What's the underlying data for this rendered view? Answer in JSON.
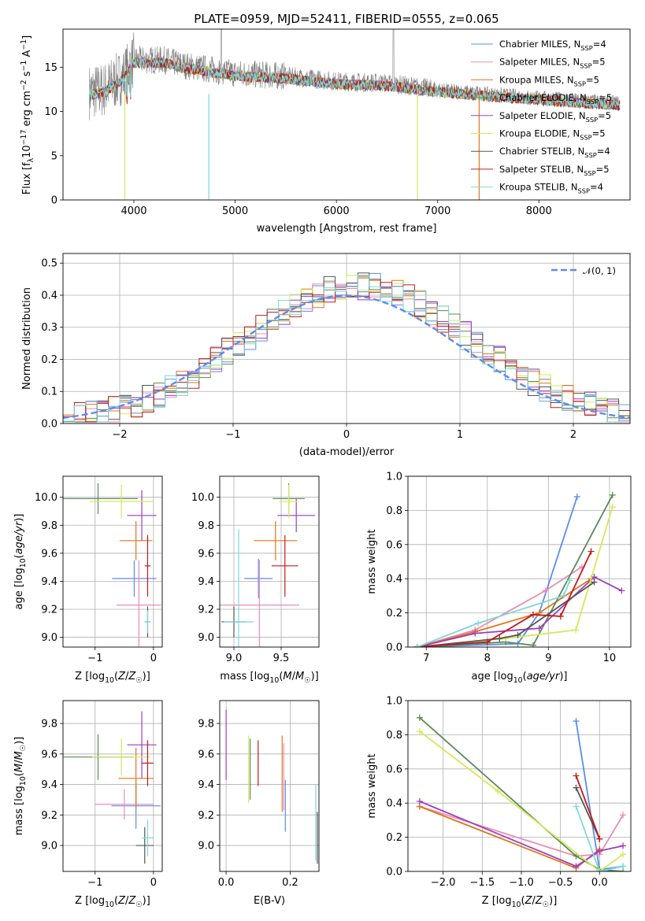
{
  "chart_data": [
    {
      "id": "spectrum",
      "type": "line",
      "title": "PLATE=0959, MJD=52411, FIBERID=0555, z=0.065",
      "xlabel": "wavelength [Angstrom, rest frame]",
      "ylabel": "Flux [f_λ 10^-17 erg cm^-2 s^-1 A^-1]",
      "xlim": [
        3300,
        8900
      ],
      "ylim": [
        0,
        19.3
      ],
      "xticks": [
        4000,
        5000,
        6000,
        7000,
        8000
      ],
      "yticks": [
        0,
        5,
        10,
        15
      ],
      "grid": false,
      "legend_position": "top-right",
      "data_color": "#808080",
      "continuum_points": [
        [
          3560,
          12.2
        ],
        [
          3700,
          12.4
        ],
        [
          3900,
          14.0
        ],
        [
          4000,
          15.8
        ],
        [
          4300,
          15.8
        ],
        [
          4500,
          15.2
        ],
        [
          5000,
          14.3
        ],
        [
          5500,
          14.0
        ],
        [
          6000,
          13.4
        ],
        [
          6500,
          13.2
        ],
        [
          7000,
          12.5
        ],
        [
          7500,
          12.0
        ],
        [
          8000,
          11.6
        ],
        [
          8500,
          11.2
        ],
        [
          8800,
          11.0
        ]
      ],
      "series": [
        {
          "name": "Chabrier MILES, N_SSP=4",
          "label_main": "Chabrier MILES, N",
          "label_sub": "SSP",
          "label_end": "=4",
          "color": "#5b8def"
        },
        {
          "name": "Salpeter MILES, N_SSP=5",
          "label_main": "Salpeter MILES, N",
          "label_sub": "SSP",
          "label_end": "=5",
          "color": "#e98cb8"
        },
        {
          "name": "Kroupa MILES, N_SSP=5",
          "label_main": "Kroupa MILES, N",
          "label_sub": "SSP",
          "label_end": "=5",
          "color": "#e0761a"
        },
        {
          "name": "Chabrier ELODIE, N_SSP=5",
          "label_main": "Chabrier ELODIE, N",
          "label_sub": "SSP",
          "label_end": "=5",
          "color": "#5a8a5a"
        },
        {
          "name": "Salpeter ELODIE, N_SSP=5",
          "label_main": "Salpeter ELODIE, N",
          "label_sub": "SSP",
          "label_end": "=5",
          "color": "#9b3fbf"
        },
        {
          "name": "Kroupa ELODIE, N_SSP=5",
          "label_main": "Kroupa ELODIE, N",
          "label_sub": "SSP",
          "label_end": "=5",
          "color": "#d6e85a"
        },
        {
          "name": "Chabrier STELIB, N_SSP=4",
          "label_main": "Chabrier STELIB, N",
          "label_sub": "SSP",
          "label_end": "=4",
          "color": "#555555"
        },
        {
          "name": "Salpeter STELIB, N_SSP=5",
          "label_main": "Salpeter STELIB, N",
          "label_sub": "SSP",
          "label_end": "=5",
          "color": "#c41a1a"
        },
        {
          "name": "Kroupa STELIB, N_SSP=4",
          "label_main": "Kroupa STELIB, N",
          "label_sub": "SSP",
          "label_end": "=4",
          "color": "#7fd8d8"
        }
      ]
    },
    {
      "id": "residuals",
      "type": "bar",
      "xlabel": "(data-model)/error",
      "ylabel": "Normed distribution",
      "xlim": [
        -2.5,
        2.5
      ],
      "ylim": [
        0,
        0.53
      ],
      "xticks": [
        -2,
        -1,
        0,
        1,
        2
      ],
      "yticks": [
        0.0,
        0.1,
        0.2,
        0.3,
        0.4,
        0.5
      ],
      "grid": true,
      "legend_position": "top-right",
      "reference_label": "𝒩(0, 1)",
      "reference_color": "#5b8def",
      "bin_width": 0.1,
      "bin_start": -2.5,
      "colors": [
        "#5b8def",
        "#e98cb8",
        "#e0761a",
        "#5a8a5a",
        "#9b3fbf",
        "#d6e85a",
        "#555555",
        "#c41a1a",
        "#7fd8d8"
      ]
    },
    {
      "id": "age_vs_Z",
      "type": "scatter",
      "xlabel": "Z [log10(Z/Z☉)]",
      "ylabel": "age  [log10(age/yr)]",
      "xlim": [
        -1.55,
        0.15
      ],
      "ylim": [
        8.93,
        10.15
      ],
      "xticks": [
        -1,
        0
      ],
      "yticks": [
        9.0,
        9.2,
        9.4,
        9.6,
        9.8,
        10.0
      ],
      "grid": true,
      "points": [
        {
          "x": -0.33,
          "y": 9.42,
          "xerr": 0.38,
          "yerr": 0.13,
          "c": 0
        },
        {
          "x": -0.25,
          "y": 9.23,
          "xerr": 0.38,
          "yerr": 0.32,
          "c": 1
        },
        {
          "x": -0.3,
          "y": 9.69,
          "xerr": 0.28,
          "yerr": 0.14,
          "c": 2
        },
        {
          "x": -0.95,
          "y": 9.99,
          "xerr": 0.68,
          "yerr": 0.11,
          "c": 3
        },
        {
          "x": -0.2,
          "y": 9.87,
          "xerr": 0.25,
          "yerr": 0.18,
          "c": 4
        },
        {
          "x": -0.55,
          "y": 9.97,
          "xerr": 0.55,
          "yerr": 0.12,
          "c": 5
        },
        {
          "x": -0.1,
          "y": 9.11,
          "xerr": 0.05,
          "yerr": 0.11,
          "c": 6
        },
        {
          "x": -0.1,
          "y": 9.51,
          "xerr": 0.05,
          "yerr": 0.22,
          "c": 7
        },
        {
          "x": -0.1,
          "y": 9.11,
          "xerr": 0.05,
          "yerr": 0.08,
          "c": 8
        }
      ]
    },
    {
      "id": "age_vs_mass",
      "type": "scatter",
      "xlabel": "mass [log10(M/M☉)]",
      "ylabel": "",
      "xlim": [
        8.85,
        9.9
      ],
      "ylim": [
        8.93,
        10.15
      ],
      "xticks": [
        9.0,
        9.5
      ],
      "yticks": [
        9.0,
        9.2,
        9.4,
        9.6,
        9.8,
        10.0
      ],
      "grid": true,
      "points": [
        {
          "x": 9.26,
          "y": 9.42,
          "xerr": 0.15,
          "yerr": 0.14,
          "c": 0
        },
        {
          "x": 9.27,
          "y": 9.23,
          "xerr": 0.42,
          "yerr": 0.32,
          "c": 1
        },
        {
          "x": 9.44,
          "y": 9.69,
          "xerr": 0.23,
          "yerr": 0.14,
          "c": 2
        },
        {
          "x": 9.58,
          "y": 9.99,
          "xerr": 0.17,
          "yerr": 0.11,
          "c": 3
        },
        {
          "x": 9.66,
          "y": 9.87,
          "xerr": 0.2,
          "yerr": 0.12,
          "c": 4
        },
        {
          "x": 9.58,
          "y": 9.97,
          "xerr": 0.1,
          "yerr": 0.12,
          "c": 5
        },
        {
          "x": 9.0,
          "y": 9.11,
          "xerr": 0.13,
          "yerr": 0.11,
          "c": 6
        },
        {
          "x": 9.54,
          "y": 9.51,
          "xerr": 0.14,
          "yerr": 0.22,
          "c": 7
        },
        {
          "x": 9.05,
          "y": 9.11,
          "xerr": 0.16,
          "yerr": 0.66,
          "c": 8
        }
      ]
    },
    {
      "id": "weight_vs_age",
      "type": "line",
      "xlabel": "age  [log10(age/yr)]",
      "ylabel": "mass weight",
      "xlim": [
        6.7,
        10.35
      ],
      "ylim": [
        0,
        1.0
      ],
      "xticks": [
        7,
        8,
        9,
        10
      ],
      "yticks": [
        0.0,
        0.2,
        0.4,
        0.6,
        0.8,
        1.0
      ],
      "grid": true,
      "series": [
        {
          "c": 0,
          "points": [
            [
              6.85,
              0.0
            ],
            [
              8.5,
              0.02
            ],
            [
              8.85,
              0.2
            ],
            [
              9.47,
              0.88
            ]
          ]
        },
        {
          "c": 1,
          "points": [
            [
              6.85,
              0.0
            ],
            [
              7.8,
              0.1
            ],
            [
              8.95,
              0.33
            ],
            [
              9.55,
              0.47
            ]
          ]
        },
        {
          "c": 2,
          "points": [
            [
              6.85,
              0.0
            ],
            [
              7.8,
              0.09
            ],
            [
              8.85,
              0.2
            ],
            [
              9.7,
              0.4
            ]
          ]
        },
        {
          "c": 3,
          "points": [
            [
              6.85,
              0.0
            ],
            [
              8.3,
              0.03
            ],
            [
              8.75,
              0.01
            ],
            [
              10.05,
              0.89
            ]
          ]
        },
        {
          "c": 4,
          "points": [
            [
              6.85,
              0.0
            ],
            [
              7.8,
              0.08
            ],
            [
              8.85,
              0.11
            ],
            [
              9.75,
              0.41
            ],
            [
              10.2,
              0.33
            ]
          ]
        },
        {
          "c": 5,
          "points": [
            [
              6.85,
              0.0
            ],
            [
              8.3,
              0.05
            ],
            [
              9.45,
              0.1
            ],
            [
              10.05,
              0.82
            ]
          ]
        },
        {
          "c": 6,
          "points": [
            [
              6.85,
              0.0
            ],
            [
              8.2,
              0.05
            ],
            [
              8.5,
              0.07
            ],
            [
              9.75,
              0.38
            ]
          ]
        },
        {
          "c": 7,
          "points": [
            [
              6.85,
              0.0
            ],
            [
              8.0,
              0.03
            ],
            [
              8.75,
              0.19
            ],
            [
              9.2,
              0.18
            ],
            [
              9.7,
              0.56
            ]
          ]
        },
        {
          "c": 8,
          "points": [
            [
              6.85,
              0.0
            ],
            [
              7.85,
              0.14
            ],
            [
              9.25,
              0.3
            ],
            [
              9.35,
              0.39
            ]
          ]
        }
      ]
    },
    {
      "id": "mass_vs_Z",
      "type": "scatter",
      "xlabel": "Z [log10(Z/Z☉)]",
      "ylabel": "mass [log10(M/M☉)]",
      "xlim": [
        -1.55,
        0.15
      ],
      "ylim": [
        8.83,
        9.95
      ],
      "xticks": [
        -1,
        0
      ],
      "yticks": [
        9.0,
        9.2,
        9.4,
        9.6,
        9.8
      ],
      "grid": true,
      "points": [
        {
          "x": -0.3,
          "y": 9.26,
          "xerr": 0.42,
          "yerr": 0.15,
          "c": 0
        },
        {
          "x": -0.5,
          "y": 9.27,
          "xerr": 0.5,
          "yerr": 0.1,
          "c": 1
        },
        {
          "x": -0.3,
          "y": 9.44,
          "xerr": 0.3,
          "yerr": 0.2,
          "c": 2
        },
        {
          "x": -0.95,
          "y": 9.58,
          "xerr": 0.6,
          "yerr": 0.15,
          "c": 3
        },
        {
          "x": -0.2,
          "y": 9.66,
          "xerr": 0.25,
          "yerr": 0.22,
          "c": 4
        },
        {
          "x": -0.55,
          "y": 9.58,
          "xerr": 0.5,
          "yerr": 0.12,
          "c": 5
        },
        {
          "x": -0.15,
          "y": 9.0,
          "xerr": 0.15,
          "yerr": 0.12,
          "c": 6
        },
        {
          "x": -0.1,
          "y": 9.54,
          "xerr": 0.1,
          "yerr": 0.15,
          "c": 7
        },
        {
          "x": -0.1,
          "y": 9.05,
          "xerr": 0.1,
          "yerr": 0.12,
          "c": 8
        }
      ]
    },
    {
      "id": "mass_vs_ebv",
      "type": "scatter",
      "xlabel": "E(B-V)",
      "ylabel": "",
      "xlim": [
        -0.02,
        0.29
      ],
      "ylim": [
        8.83,
        9.95
      ],
      "xticks": [
        0.0,
        0.2
      ],
      "yticks": [
        9.0,
        9.2,
        9.4,
        9.6,
        9.8
      ],
      "grid": true,
      "points": [
        {
          "x": 0.185,
          "y": 9.26,
          "yerr": 0.17,
          "c": 0
        },
        {
          "x": 0.18,
          "y": 9.45,
          "yerr": 0.22,
          "c": 1
        },
        {
          "x": 0.175,
          "y": 9.47,
          "yerr": 0.25,
          "c": 2
        },
        {
          "x": 0.075,
          "y": 9.5,
          "yerr": 0.2,
          "c": 3
        },
        {
          "x": 0.0,
          "y": 9.66,
          "yerr": 0.23,
          "c": 4
        },
        {
          "x": 0.07,
          "y": 9.5,
          "yerr": 0.22,
          "c": 5
        },
        {
          "x": 0.285,
          "y": 9.05,
          "yerr": 0.17,
          "c": 6
        },
        {
          "x": 0.1,
          "y": 9.54,
          "yerr": 0.15,
          "c": 7
        },
        {
          "x": 0.28,
          "y": 9.15,
          "yerr": 0.25,
          "c": 8
        }
      ]
    },
    {
      "id": "weight_vs_Z",
      "type": "line",
      "xlabel": "Z [log10(Z/Z☉)]",
      "ylabel": "mass weight",
      "xlim": [
        -2.45,
        0.4
      ],
      "ylim": [
        0,
        1.0
      ],
      "xticks": [
        -2.0,
        -1.5,
        -1.0,
        -0.5,
        0.0
      ],
      "yticks": [
        0.0,
        0.2,
        0.4,
        0.6,
        0.8,
        1.0
      ],
      "grid": true,
      "series": [
        {
          "c": 0,
          "points": [
            [
              -0.3,
              0.88
            ],
            [
              0.0,
              0.01
            ],
            [
              0.3,
              0.03
            ]
          ]
        },
        {
          "c": 1,
          "points": [
            [
              -2.3,
              0.38
            ],
            [
              -0.3,
              0.09
            ],
            [
              0.0,
              0.1
            ],
            [
              0.3,
              0.33
            ]
          ]
        },
        {
          "c": 2,
          "points": [
            [
              -2.3,
              0.38
            ],
            [
              -0.3,
              0.02
            ],
            [
              0.0,
              0.13
            ]
          ]
        },
        {
          "c": 3,
          "points": [
            [
              -2.3,
              0.9
            ],
            [
              -0.3,
              0.09
            ],
            [
              0.0,
              0.01
            ],
            [
              0.3,
              0.0
            ]
          ]
        },
        {
          "c": 4,
          "points": [
            [
              -2.3,
              0.41
            ],
            [
              -0.3,
              0.03
            ],
            [
              0.0,
              0.12
            ],
            [
              0.3,
              0.15
            ]
          ]
        },
        {
          "c": 5,
          "points": [
            [
              -2.3,
              0.82
            ],
            [
              -1.3,
              0.47
            ],
            [
              0.0,
              0.0
            ],
            [
              0.3,
              0.1
            ]
          ]
        },
        {
          "c": 6,
          "points": [
            [
              -0.3,
              0.49
            ],
            [
              0.0,
              0.19
            ]
          ]
        },
        {
          "c": 7,
          "points": [
            [
              -0.3,
              0.56
            ],
            [
              0.0,
              0.19
            ]
          ]
        },
        {
          "c": 8,
          "points": [
            [
              -0.3,
              0.38
            ],
            [
              0.0,
              0.0
            ],
            [
              0.3,
              0.03
            ]
          ]
        }
      ]
    }
  ]
}
